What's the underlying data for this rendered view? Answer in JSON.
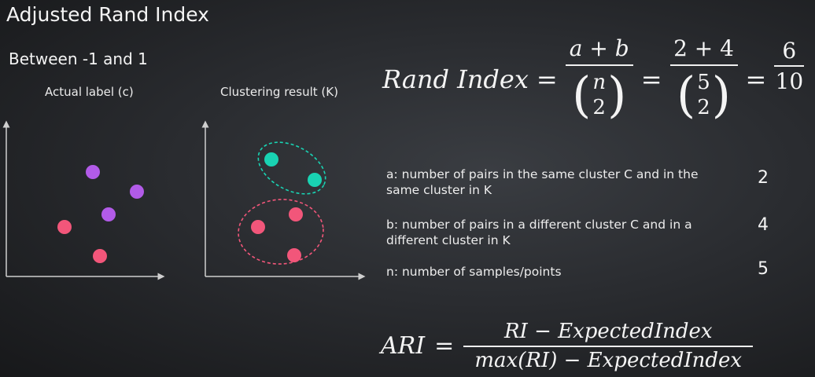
{
  "title": "Adjusted Rand Index",
  "subtitle": "Between -1 and 1",
  "plots": {
    "actual_label": "Actual label (c)",
    "clustering_label": "Clustering result (K)"
  },
  "rand_index": {
    "lhs": "Rand Index",
    "eq": "=",
    "num1": "a + b",
    "binom_top1": "n",
    "binom_bot1": "2",
    "num2": "2 + 4",
    "binom_top2": "5",
    "binom_bot2": "2",
    "num3": "6",
    "den3": "10"
  },
  "definitions": [
    {
      "text": "a: number of pairs in the same cluster C and in the same cluster in K",
      "value": "2"
    },
    {
      "text": "b: number of pairs in a different cluster C and in a different cluster in K",
      "value": "4"
    },
    {
      "text": "n: number of samples/points",
      "value": "5"
    }
  ],
  "ari": {
    "lhs": "ARI",
    "eq": "=",
    "numerator": "RI − ExpectedIndex",
    "denominator": "max(RI) − ExpectedIndex"
  },
  "colors": {
    "purple": "#b25be8",
    "pink": "#f2567a",
    "teal": "#19d3b3",
    "axis": "#cfcfcf"
  }
}
